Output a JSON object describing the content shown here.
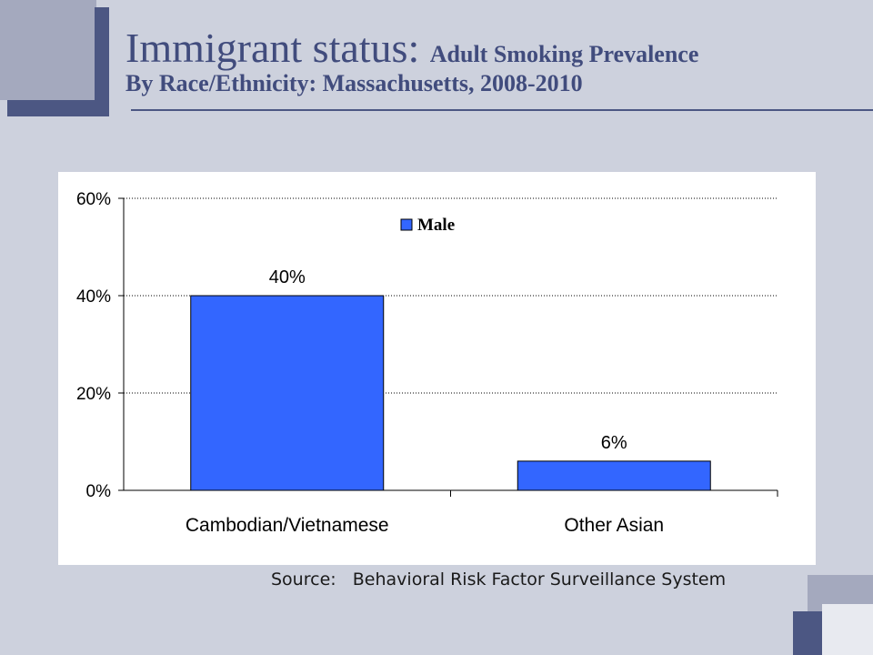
{
  "slide": {
    "title_main": "Immigrant status: ",
    "title_sub": "Adult Smoking Prevalence",
    "title_line2": "By Race/Ethnicity: Massachusetts, 2008-2010",
    "source": "Source:   Behavioral Risk Factor Surveillance System"
  },
  "colors": {
    "bar": "#3366ff",
    "title": "#414c7d",
    "accent_dark": "#4c5783",
    "accent_light": "#a4a9be"
  },
  "chart_data": {
    "type": "bar",
    "categories": [
      "Cambodian/Vietnamese",
      "Other Asian"
    ],
    "series": [
      {
        "name": "Male",
        "values": [
          40,
          6
        ],
        "labels": [
          "40%",
          "6%"
        ]
      }
    ],
    "title": "",
    "xlabel": "",
    "ylabel": "",
    "ylim": [
      0,
      60
    ],
    "yticks": [
      0,
      20,
      40,
      60
    ],
    "ytick_labels": [
      "0%",
      "20%",
      "40%",
      "60%"
    ],
    "grid": true,
    "legend": "top-center"
  }
}
